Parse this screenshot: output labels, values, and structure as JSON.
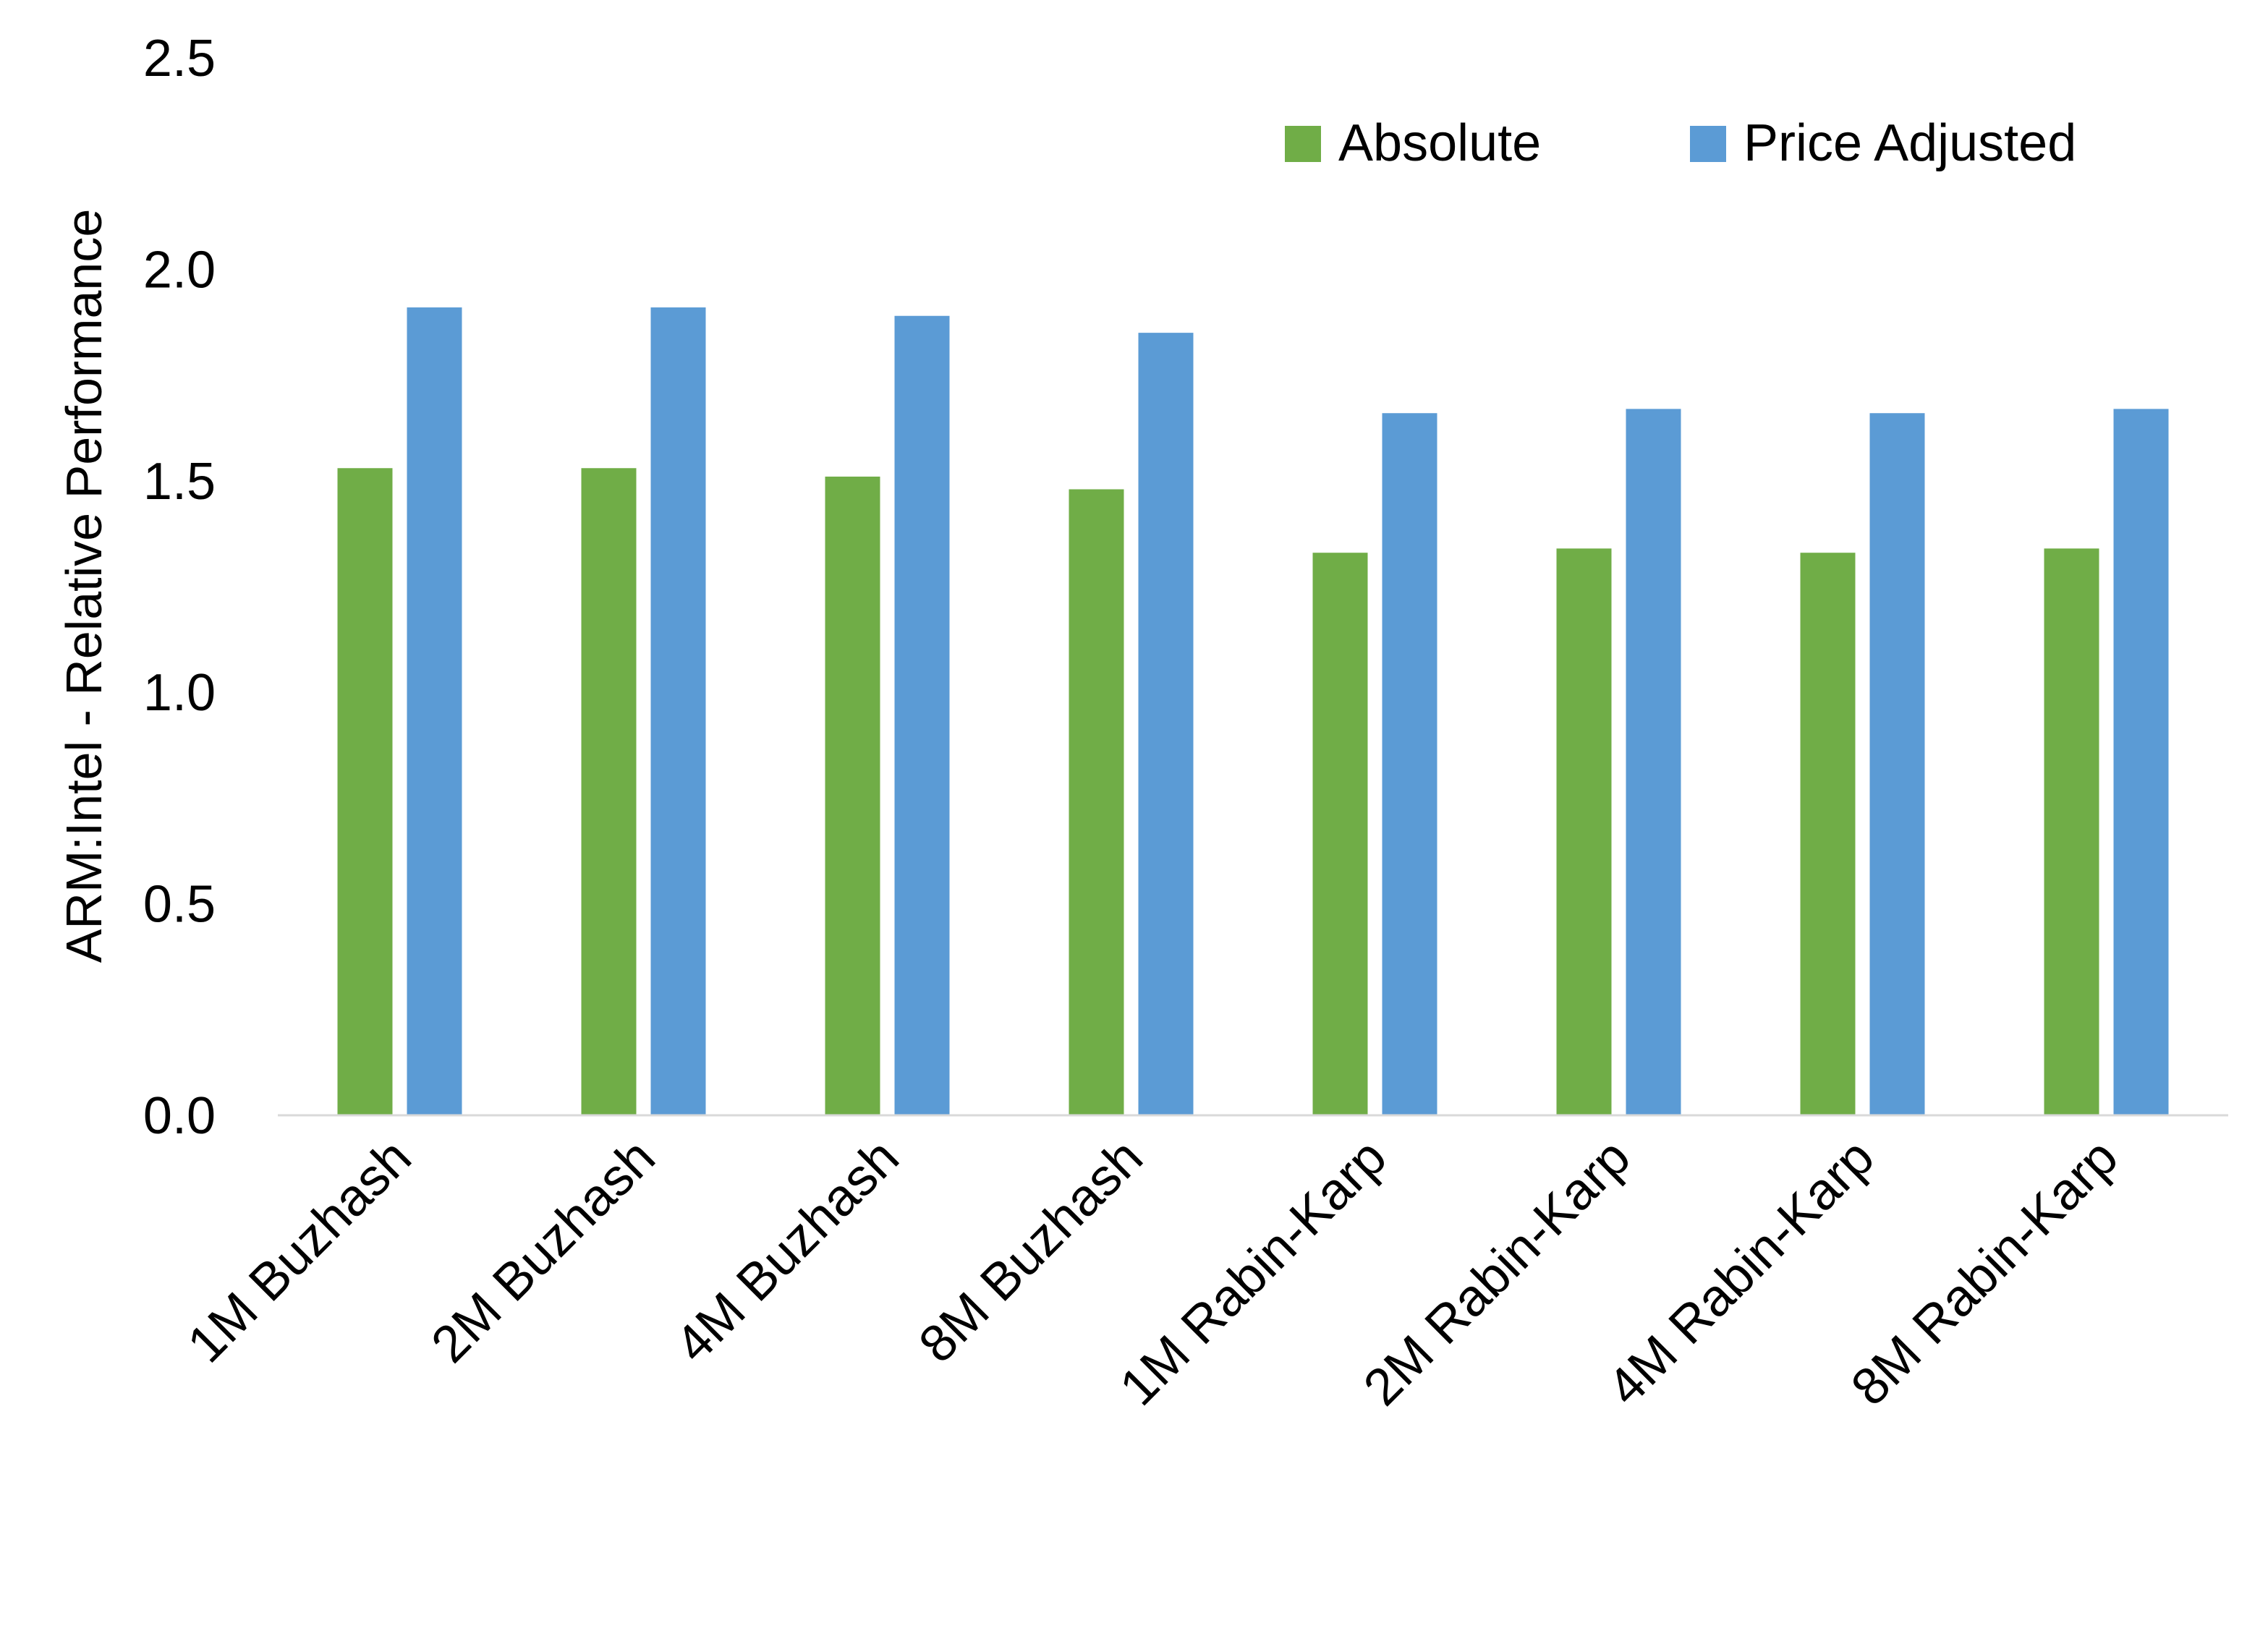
{
  "chart_data": {
    "type": "bar",
    "title": "",
    "xlabel": "",
    "ylabel": "ARM:Intel - Relative Performance",
    "ylim": [
      0,
      2.5
    ],
    "yticks": [
      "0.0",
      "0.5",
      "1.0",
      "1.5",
      "2.0",
      "2.5"
    ],
    "grid": false,
    "legend_position": "top-right",
    "categories": [
      "1M Buzhash",
      "2M Buzhash",
      "4M Buzhash",
      "8M Buzhash",
      "1M Rabin-Karp",
      "2M Rabin-Karp",
      "4M Rabin-Karp",
      "8M Rabin-Karp"
    ],
    "series": [
      {
        "name": "Absolute",
        "color": "#70AD47",
        "values": [
          1.53,
          1.53,
          1.51,
          1.48,
          1.33,
          1.34,
          1.33,
          1.34
        ]
      },
      {
        "name": "Price Adjusted",
        "color": "#5B9BD5",
        "values": [
          1.91,
          1.91,
          1.89,
          1.85,
          1.66,
          1.67,
          1.66,
          1.67
        ]
      }
    ]
  }
}
